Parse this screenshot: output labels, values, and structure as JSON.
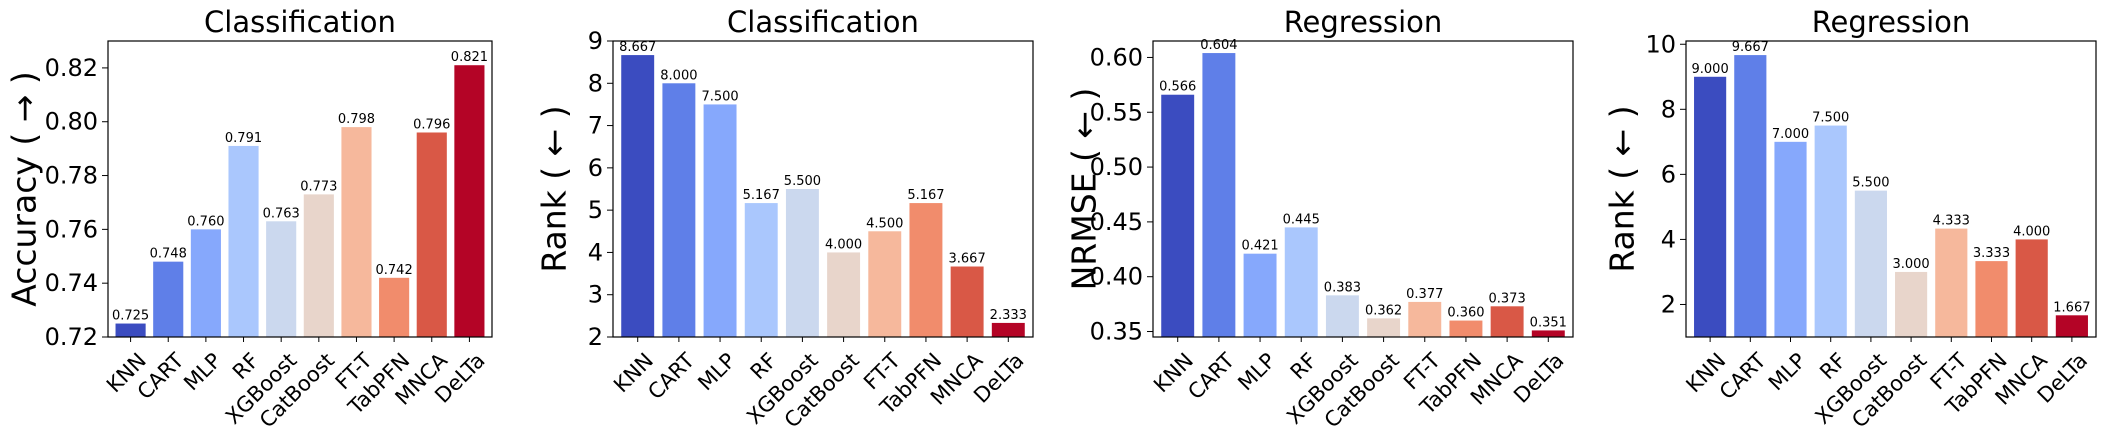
{
  "chart_data": [
    {
      "type": "bar",
      "title": "Classification",
      "xlabel": "",
      "ylabel": "Accuracy ( → )",
      "ylim": [
        0.72,
        0.83
      ],
      "yticks": [
        0.72,
        0.74,
        0.76,
        0.78,
        0.8,
        0.82
      ],
      "ytick_labels": [
        "0.72",
        "0.74",
        "0.76",
        "0.78",
        "0.80",
        "0.82"
      ],
      "categories": [
        "KNN",
        "CART",
        "MLP",
        "RF",
        "XGBoost",
        "CatBoost",
        "FT-T",
        "TabPFN",
        "MNCA",
        "DeLTa"
      ],
      "values": [
        0.725,
        0.748,
        0.76,
        0.791,
        0.763,
        0.773,
        0.798,
        0.742,
        0.796,
        0.821
      ],
      "value_labels": [
        "0.725",
        "0.748",
        "0.760",
        "0.791",
        "0.763",
        "0.773",
        "0.798",
        "0.742",
        "0.796",
        "0.821"
      ],
      "grid": false,
      "legend": "none"
    },
    {
      "type": "bar",
      "title": "Classification",
      "xlabel": "",
      "ylabel": "Rank ( ← )",
      "ylim": [
        2,
        9
      ],
      "yticks": [
        2,
        3,
        4,
        5,
        6,
        7,
        8,
        9
      ],
      "ytick_labels": [
        "2",
        "3",
        "4",
        "5",
        "6",
        "7",
        "8",
        "9"
      ],
      "categories": [
        "KNN",
        "CART",
        "MLP",
        "RF",
        "XGBoost",
        "CatBoost",
        "FT-T",
        "TabPFN",
        "MNCA",
        "DeLTa"
      ],
      "values": [
        8.667,
        8.0,
        7.5,
        5.167,
        5.5,
        4.0,
        4.5,
        5.167,
        3.667,
        2.333
      ],
      "value_labels": [
        "8.667",
        "8.000",
        "7.500",
        "5.167",
        "5.500",
        "4.000",
        "4.500",
        "5.167",
        "3.667",
        "2.333"
      ],
      "grid": false,
      "legend": "none"
    },
    {
      "type": "bar",
      "title": "Regression",
      "xlabel": "",
      "ylabel": "NRMSE ( ← )",
      "ylim": [
        0.345,
        0.615
      ],
      "yticks": [
        0.35,
        0.4,
        0.45,
        0.5,
        0.55,
        0.6
      ],
      "ytick_labels": [
        "0.35",
        "0.40",
        "0.45",
        "0.50",
        "0.55",
        "0.60"
      ],
      "categories": [
        "KNN",
        "CART",
        "MLP",
        "RF",
        "XGBoost",
        "CatBoost",
        "FT-T",
        "TabPFN",
        "MNCA",
        "DeLTa"
      ],
      "values": [
        0.566,
        0.604,
        0.421,
        0.445,
        0.383,
        0.362,
        0.377,
        0.36,
        0.373,
        0.351
      ],
      "value_labels": [
        "0.566",
        "0.604",
        "0.421",
        "0.445",
        "0.383",
        "0.362",
        "0.377",
        "0.360",
        "0.373",
        "0.351"
      ],
      "grid": false,
      "legend": "none"
    },
    {
      "type": "bar",
      "title": "Regression",
      "xlabel": "",
      "ylabel": "Rank ( ← )",
      "ylim": [
        1,
        10.1
      ],
      "yticks": [
        2,
        4,
        6,
        8,
        10
      ],
      "ytick_labels": [
        "2",
        "4",
        "6",
        "8",
        "10"
      ],
      "categories": [
        "KNN",
        "CART",
        "MLP",
        "RF",
        "XGBoost",
        "CatBoost",
        "FT-T",
        "TabPFN",
        "MNCA",
        "DeLTa"
      ],
      "values": [
        9.0,
        9.667,
        7.0,
        7.5,
        5.5,
        3.0,
        4.333,
        3.333,
        4.0,
        1.667
      ],
      "value_labels": [
        "9.000",
        "9.667",
        "7.000",
        "7.500",
        "5.500",
        "3.000",
        "4.333",
        "3.333",
        "4.000",
        "1.667"
      ],
      "grid": false,
      "legend": "none"
    }
  ],
  "colors": {
    "bars": [
      "#3b4cc0",
      "#5f7fe8",
      "#86a8fc",
      "#aac7fd",
      "#cbd8ee",
      "#e8d5cb",
      "#f6b89c",
      "#f18c6c",
      "#d95846",
      "#b40426"
    ],
    "axis": "#000000",
    "background": "#ffffff"
  }
}
